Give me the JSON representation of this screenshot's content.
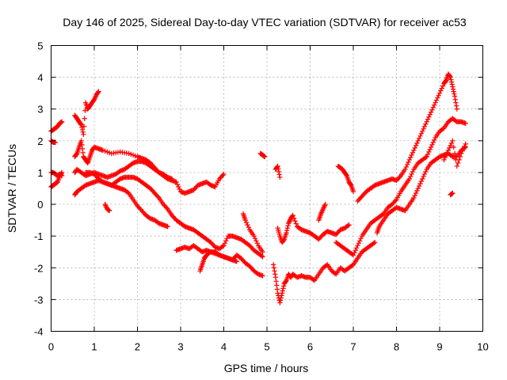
{
  "chart_data": {
    "type": "scatter",
    "title": "Day 146 of 2025, Sidereal Day-to-day VTEC variation (SDTVAR) for receiver ac53",
    "xlabel": "GPS time / hours",
    "ylabel": "SDTVAR / TECUs",
    "xlim": [
      0,
      10
    ],
    "ylim": [
      -4,
      5
    ],
    "x_ticks": [
      0,
      1,
      2,
      3,
      4,
      5,
      6,
      7,
      8,
      9,
      10
    ],
    "y_ticks": [
      -4,
      -3,
      -2,
      -1,
      0,
      1,
      2,
      3,
      4,
      5
    ],
    "grid": true,
    "marker": "+",
    "color": "#ff0000",
    "series": [
      {
        "x": [
          0.0,
          0.05,
          0.1,
          0.15,
          0.2,
          0.25
        ],
        "y": [
          2.3,
          2.35,
          2.4,
          2.45,
          2.55,
          2.6
        ]
      },
      {
        "x": [
          0.0,
          0.05,
          0.1
        ],
        "y": [
          2.0,
          1.95,
          1.95
        ]
      },
      {
        "x": [
          0.0,
          0.05,
          0.1,
          0.15,
          0.2,
          0.25
        ],
        "y": [
          0.55,
          0.6,
          0.65,
          0.7,
          0.9,
          1.0
        ]
      },
      {
        "x": [
          0.0,
          0.05,
          0.1,
          0.15,
          0.2,
          0.25
        ],
        "y": [
          1.0,
          1.0,
          0.95,
          0.9,
          0.95,
          0.9
        ]
      },
      {
        "x": [
          0.55,
          0.6,
          0.65,
          0.7,
          0.75,
          0.8,
          0.85,
          0.9,
          0.95,
          1.0,
          1.05,
          1.1
        ],
        "y": [
          2.8,
          2.7,
          2.6,
          2.5,
          2.2,
          3.2,
          3.0,
          3.1,
          3.2,
          3.3,
          3.45,
          3.55
        ]
      },
      {
        "x": [
          0.55,
          0.6,
          0.65,
          0.7,
          0.75,
          0.8,
          0.85,
          0.9,
          0.95,
          1.0,
          1.1,
          1.2,
          1.4,
          1.6,
          1.8,
          2.0,
          2.1,
          2.2,
          2.3,
          2.4,
          2.5,
          2.6,
          2.7,
          2.8,
          2.9,
          3.0,
          3.1,
          3.2,
          3.3,
          3.4,
          3.5,
          3.6,
          3.7,
          3.8,
          3.9,
          4.0
        ],
        "y": [
          1.5,
          1.6,
          1.8,
          2.0,
          1.5,
          1.4,
          1.3,
          1.5,
          1.7,
          1.8,
          1.75,
          1.7,
          1.6,
          1.65,
          1.6,
          1.5,
          1.45,
          1.4,
          1.3,
          1.15,
          1.0,
          0.9,
          0.8,
          0.75,
          0.7,
          0.4,
          0.35,
          0.4,
          0.45,
          0.6,
          0.65,
          0.7,
          0.6,
          0.55,
          0.8,
          0.95
        ]
      },
      {
        "x": [
          0.55,
          0.6,
          0.7,
          0.8,
          0.9,
          1.0,
          1.1,
          1.2,
          1.3,
          1.4,
          1.5,
          1.6,
          1.7,
          1.8,
          1.9,
          2.0,
          2.1,
          2.2,
          2.3,
          2.4,
          2.5,
          2.6,
          2.7,
          2.8
        ],
        "y": [
          1.0,
          1.1,
          1.0,
          0.9,
          0.95,
          1.0,
          0.95,
          0.9,
          0.85,
          0.9,
          0.95,
          1.05,
          1.1,
          1.2,
          1.3,
          1.35,
          1.35,
          1.3,
          1.2,
          1.1,
          1.0,
          0.95,
          0.85,
          0.8
        ]
      },
      {
        "x": [
          0.55,
          0.6,
          0.7,
          0.8,
          0.9,
          1.0,
          1.1,
          1.2,
          1.3,
          1.4,
          1.5,
          1.6,
          1.7,
          1.8,
          1.9,
          2.0,
          2.1,
          2.2,
          2.3,
          2.4,
          2.5,
          2.6,
          2.7
        ],
        "y": [
          0.3,
          0.4,
          0.5,
          0.6,
          0.65,
          0.7,
          0.75,
          0.7,
          0.65,
          0.6,
          0.55,
          0.5,
          0.45,
          0.35,
          0.15,
          -0.05,
          -0.2,
          -0.35,
          -0.45,
          -0.5,
          -0.6,
          -0.65,
          -0.7
        ]
      },
      {
        "x": [
          0.8,
          0.9,
          1.0,
          1.1,
          1.2,
          1.3,
          1.4,
          1.5,
          1.6,
          1.7,
          1.8,
          1.9,
          2.0,
          2.1,
          2.2,
          2.3,
          2.4,
          2.5,
          2.6,
          2.7,
          2.8,
          2.9,
          3.0,
          3.1,
          3.2,
          3.3,
          3.4,
          3.5,
          3.6,
          3.7,
          3.8,
          3.9,
          4.0,
          4.1,
          4.2,
          4.3,
          4.4,
          4.5,
          4.6,
          4.7,
          4.8,
          4.9
        ],
        "y": [
          1.0,
          1.0,
          0.95,
          0.8,
          0.7,
          0.65,
          0.6,
          0.7,
          0.8,
          0.85,
          0.85,
          0.85,
          0.8,
          0.7,
          0.6,
          0.5,
          0.35,
          0.2,
          0.0,
          -0.15,
          -0.35,
          -0.5,
          -0.6,
          -0.7,
          -0.75,
          -0.8,
          -0.9,
          -1.0,
          -1.1,
          -1.2,
          -1.35,
          -1.4,
          -1.3,
          -1.0,
          -1.0,
          -1.05,
          -1.1,
          -1.2,
          -1.3,
          -1.45,
          -1.55,
          -1.65
        ]
      },
      {
        "x": [
          1.25,
          1.3,
          1.35
        ],
        "y": [
          0.0,
          -0.15,
          -0.2
        ]
      },
      {
        "x": [
          2.9,
          3.0,
          3.1,
          3.2,
          3.3,
          3.4,
          3.5,
          3.6,
          3.7,
          3.8,
          3.9,
          4.0,
          4.1,
          4.2,
          4.3,
          4.4,
          4.5,
          4.6,
          4.7,
          4.8,
          4.9
        ],
        "y": [
          -1.45,
          -1.4,
          -1.35,
          -1.4,
          -1.3,
          -1.4,
          -1.5,
          -1.45,
          -1.5,
          -1.55,
          -1.6,
          -1.65,
          -1.7,
          -1.75,
          -1.6,
          -1.7,
          -1.85,
          -1.95,
          -2.1,
          -2.2,
          -2.25
        ]
      },
      {
        "x": [
          3.45,
          3.5,
          3.55,
          3.6,
          3.7,
          3.8,
          3.9,
          4.0,
          4.1,
          4.2,
          4.3
        ],
        "y": [
          -2.1,
          -1.9,
          -1.7,
          -1.6,
          -1.5,
          -1.5,
          -1.6,
          -1.65,
          -1.7,
          -1.75,
          -1.8
        ]
      },
      {
        "x": [
          4.45,
          4.5,
          4.6,
          4.7,
          4.8,
          4.9
        ],
        "y": [
          -0.3,
          -0.5,
          -0.8,
          -1.0,
          -1.3,
          -1.5
        ]
      },
      {
        "x": [
          4.85,
          4.9,
          4.95
        ],
        "y": [
          1.6,
          1.55,
          1.5
        ]
      },
      {
        "x": [
          5.2,
          5.25,
          5.3
        ],
        "y": [
          1.1,
          1.2,
          0.85
        ]
      },
      {
        "x": [
          5.15,
          5.2,
          5.25,
          5.3,
          5.35,
          5.4,
          5.45,
          5.5,
          5.55,
          5.6,
          5.7,
          5.8,
          5.9,
          6.0,
          6.1,
          6.2,
          6.3,
          6.4,
          6.5,
          6.6,
          6.7,
          6.8,
          6.9,
          7.0,
          7.1,
          7.2,
          7.3,
          7.4,
          7.5
        ],
        "y": [
          -1.9,
          -2.3,
          -2.8,
          -3.1,
          -2.8,
          -2.5,
          -2.4,
          -2.2,
          -2.3,
          -2.2,
          -2.3,
          -2.25,
          -2.3,
          -2.3,
          -2.4,
          -2.2,
          -2.0,
          -1.9,
          -2.1,
          -2.2,
          -2.0,
          -2.1,
          -2.0,
          -1.9,
          -1.7,
          -1.5,
          -1.4,
          -1.3,
          -1.2
        ]
      },
      {
        "x": [
          5.25,
          5.3,
          5.35,
          5.4,
          5.45,
          5.5,
          5.55,
          5.6,
          5.7,
          5.8,
          5.9,
          6.0,
          6.1,
          6.2,
          6.3,
          6.4,
          6.5,
          6.6,
          6.7,
          6.8,
          6.9
        ],
        "y": [
          -0.75,
          -1.0,
          -1.2,
          -1.1,
          -0.9,
          -0.6,
          -0.45,
          -0.35,
          -0.7,
          -0.8,
          -0.85,
          -0.9,
          -1.0,
          -1.1,
          -0.95,
          -0.85,
          -0.9,
          -0.95,
          -0.8,
          -0.75,
          -0.65
        ]
      },
      {
        "x": [
          6.2,
          6.25,
          6.3,
          6.35
        ],
        "y": [
          -0.5,
          -0.3,
          -0.15,
          0.0
        ]
      },
      {
        "x": [
          6.65,
          6.7,
          6.75,
          6.8,
          6.85,
          6.9,
          6.95,
          7.0
        ],
        "y": [
          1.2,
          1.15,
          1.1,
          1.0,
          0.9,
          0.7,
          0.6,
          0.4
        ]
      },
      {
        "x": [
          6.6,
          6.7,
          6.8,
          6.9,
          7.0,
          7.1,
          7.2,
          7.3,
          7.4,
          7.5,
          7.6,
          7.7,
          7.8,
          7.9,
          8.0,
          8.1,
          8.2,
          8.3,
          8.4,
          8.5,
          8.6,
          8.7,
          8.8,
          8.9,
          9.0,
          9.1,
          9.2,
          9.3,
          9.4,
          9.5,
          9.6
        ],
        "y": [
          -1.2,
          -1.3,
          -1.4,
          -1.5,
          -1.6,
          -1.3,
          -1.0,
          -0.8,
          -0.6,
          -0.5,
          -0.4,
          -0.3,
          -0.1,
          0.0,
          0.15,
          0.4,
          0.6,
          0.8,
          1.1,
          1.3,
          1.4,
          1.5,
          1.8,
          2.1,
          2.3,
          2.4,
          2.6,
          2.7,
          2.6,
          2.6,
          2.55
        ]
      },
      {
        "x": [
          7.1,
          7.2,
          7.3,
          7.4,
          7.5,
          7.6,
          7.7,
          7.8,
          7.9,
          8.0,
          8.1,
          8.2,
          8.3,
          8.4,
          8.5,
          8.6,
          8.7,
          8.8,
          8.9,
          9.0,
          9.1,
          9.15,
          9.2,
          9.25,
          9.3,
          9.35,
          9.4
        ],
        "y": [
          0.1,
          0.25,
          0.4,
          0.5,
          0.6,
          0.65,
          0.7,
          0.75,
          0.8,
          0.75,
          0.9,
          1.1,
          1.4,
          1.7,
          2.0,
          2.3,
          2.6,
          2.9,
          3.2,
          3.5,
          3.8,
          3.9,
          4.1,
          4.0,
          3.7,
          3.4,
          3.0
        ]
      },
      {
        "x": [
          7.55,
          7.6,
          7.7,
          7.8,
          7.9,
          8.0,
          8.1,
          8.2,
          8.3,
          8.4,
          8.5,
          8.6,
          8.7,
          8.8,
          8.9,
          9.0,
          9.1,
          9.2,
          9.3,
          9.4,
          9.5,
          9.6
        ],
        "y": [
          -0.9,
          -0.7,
          -0.5,
          -0.3,
          -0.2,
          -0.1,
          -0.15,
          -0.2,
          0.0,
          0.2,
          0.5,
          0.8,
          1.1,
          1.3,
          1.4,
          1.5,
          1.55,
          1.6,
          1.5,
          1.5,
          1.7,
          1.8
        ]
      },
      {
        "x": [
          9.1,
          9.2,
          9.3,
          9.4,
          9.5,
          9.6
        ],
        "y": [
          1.4,
          1.7,
          2.0,
          1.2,
          1.6,
          1.9
        ]
      },
      {
        "x": [
          9.25,
          9.3
        ],
        "y": [
          0.3,
          0.35
        ]
      }
    ]
  }
}
